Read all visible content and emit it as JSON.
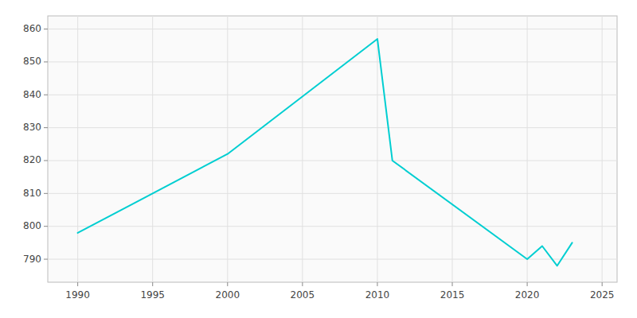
{
  "chart_data": {
    "type": "line",
    "x": [
      1990,
      2000,
      2010,
      2011,
      2020,
      2021,
      2022,
      2023
    ],
    "values": [
      798,
      822,
      857,
      820,
      790,
      794,
      788,
      795
    ],
    "color": "#00CED1",
    "xlim": [
      1988,
      2026
    ],
    "ylim": [
      783,
      864
    ],
    "xticks": [
      1990,
      1995,
      2000,
      2005,
      2010,
      2015,
      2020,
      2025
    ],
    "yticks": [
      790,
      800,
      810,
      820,
      830,
      840,
      850,
      860
    ],
    "grid": true
  }
}
